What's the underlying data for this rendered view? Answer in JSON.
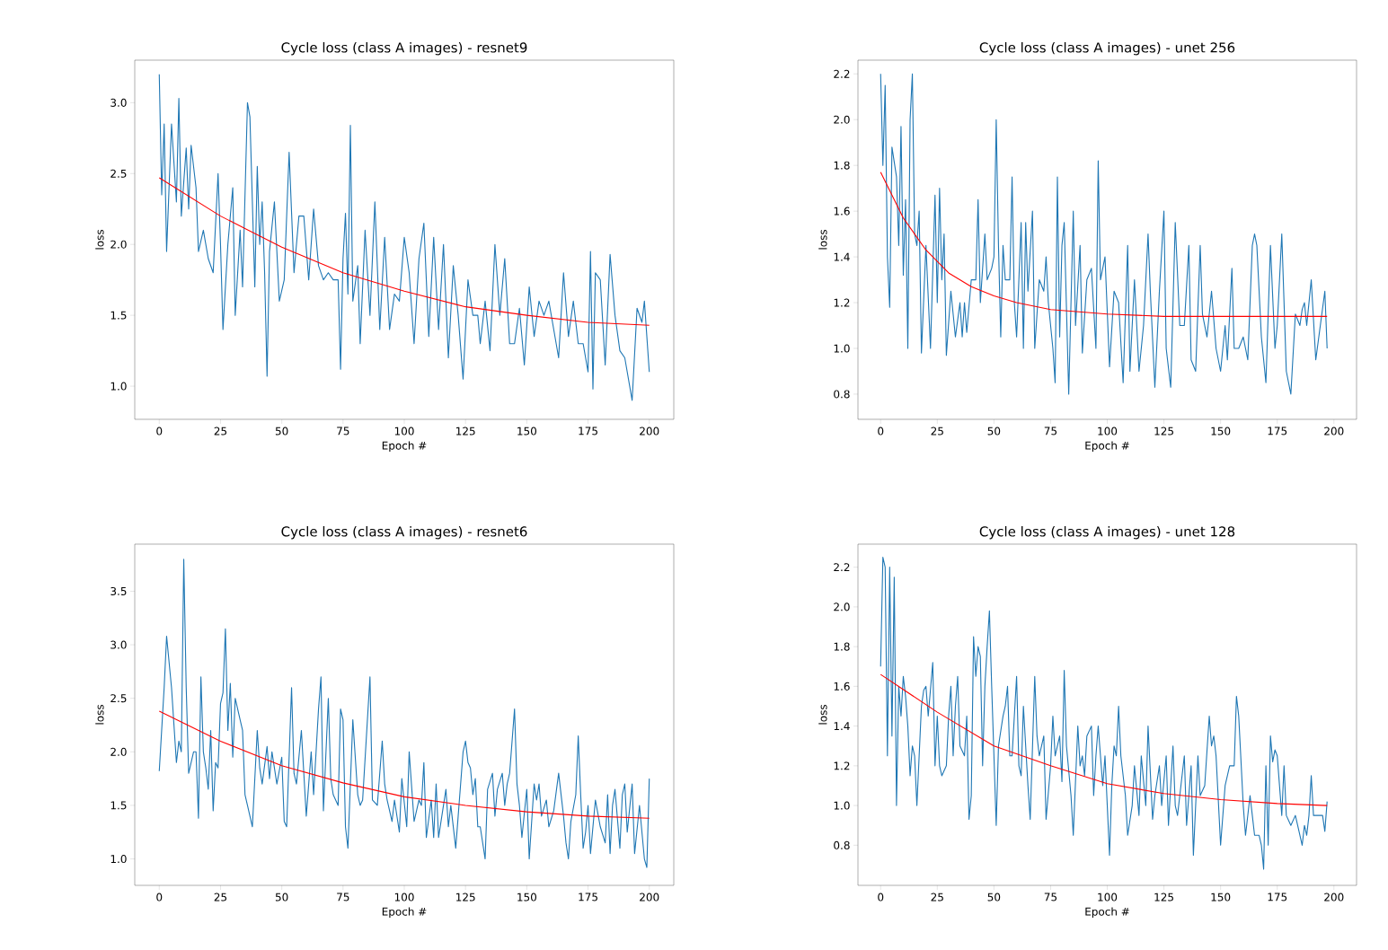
{
  "chart_data": [
    {
      "type": "line",
      "title": "Cycle loss (class A images) - resnet9",
      "xlabel": "Epoch #",
      "ylabel": "loss",
      "xlim": [
        -10,
        210
      ],
      "ylim": [
        0.766,
        3.3
      ],
      "xticks": [
        0,
        25,
        50,
        75,
        100,
        125,
        150,
        175,
        200
      ],
      "yticks": [
        {
          "value": 1.0,
          "label": "1.0"
        },
        1.5,
        {
          "value": 2.0,
          "label": "2.0"
        },
        2.5,
        {
          "value": 3.0,
          "label": "3.0"
        }
      ],
      "series": [
        {
          "color": "#1f77b4",
          "x": [
            0,
            1,
            2,
            3,
            5,
            7,
            8,
            9,
            11,
            12,
            13,
            15,
            16,
            18,
            20,
            22,
            24,
            25,
            26,
            28,
            30,
            31,
            33,
            34,
            36,
            37,
            39,
            40,
            41,
            42,
            43,
            44,
            45,
            47,
            49,
            51,
            53,
            55,
            57,
            59,
            61,
            63,
            65,
            67,
            69,
            71,
            73,
            74,
            75,
            76,
            77,
            78,
            79,
            81,
            82,
            84,
            86,
            88,
            90,
            92,
            94,
            96,
            98,
            100,
            102,
            104,
            106,
            108,
            110,
            112,
            114,
            116,
            118,
            120,
            122,
            124,
            126,
            128,
            130,
            131,
            133,
            135,
            137,
            139,
            141,
            143,
            145,
            147,
            149,
            151,
            153,
            155,
            157,
            159,
            161,
            163,
            165,
            167,
            169,
            171,
            173,
            175,
            176,
            177,
            178,
            180,
            182,
            184,
            186,
            188,
            190,
            193,
            195,
            197,
            198,
            200
          ],
          "values": [
            3.2,
            2.35,
            2.85,
            1.95,
            2.85,
            2.3,
            3.03,
            2.2,
            2.68,
            2.25,
            2.7,
            2.4,
            1.95,
            2.1,
            1.9,
            1.8,
            2.5,
            2.0,
            1.4,
            2.0,
            2.4,
            1.5,
            2.1,
            1.7,
            3.0,
            2.9,
            1.7,
            2.55,
            2.0,
            2.3,
            1.8,
            1.07,
            1.95,
            2.3,
            1.6,
            1.75,
            2.65,
            1.8,
            2.2,
            2.2,
            1.75,
            2.25,
            1.85,
            1.75,
            1.8,
            1.75,
            1.75,
            1.12,
            1.9,
            2.22,
            1.65,
            2.84,
            1.6,
            1.85,
            1.3,
            2.1,
            1.5,
            2.3,
            1.4,
            2.05,
            1.4,
            1.65,
            1.6,
            2.05,
            1.8,
            1.3,
            1.9,
            2.15,
            1.35,
            2.05,
            1.4,
            2.0,
            1.2,
            1.85,
            1.5,
            1.05,
            1.75,
            1.5,
            1.5,
            1.3,
            1.6,
            1.25,
            2.0,
            1.5,
            1.9,
            1.3,
            1.3,
            1.55,
            1.15,
            1.7,
            1.35,
            1.6,
            1.5,
            1.6,
            1.4,
            1.2,
            1.8,
            1.35,
            1.6,
            1.3,
            1.3,
            1.1,
            1.95,
            0.98,
            1.8,
            1.75,
            1.15,
            1.93,
            1.5,
            1.25,
            1.2,
            0.9,
            1.55,
            1.45,
            1.6,
            1.1
          ]
        },
        {
          "color": "#ff0000",
          "x": [
            0,
            25,
            50,
            75,
            100,
            125,
            150,
            175,
            200
          ],
          "values": [
            2.47,
            2.2,
            1.98,
            1.8,
            1.67,
            1.56,
            1.5,
            1.45,
            1.43
          ]
        }
      ]
    },
    {
      "type": "line",
      "title": "Cycle loss (class A images) - unet 256",
      "xlabel": "Epoch #",
      "ylabel": "loss",
      "xlim": [
        -10,
        210
      ],
      "ylim": [
        0.69,
        2.26
      ],
      "xticks": [
        0,
        25,
        50,
        75,
        100,
        125,
        150,
        175,
        200
      ],
      "yticks": [
        0.8,
        {
          "value": 1.0,
          "label": "1.0"
        },
        1.2,
        1.4,
        1.6,
        1.8,
        {
          "value": 2.0,
          "label": "2.0"
        },
        2.2
      ],
      "series": [
        {
          "color": "#1f77b4",
          "x": [
            0,
            1,
            2,
            3,
            4,
            5,
            7,
            8,
            9,
            10,
            11,
            12,
            13,
            14,
            15,
            16,
            17,
            18,
            20,
            22,
            24,
            25,
            26,
            27,
            28,
            29,
            31,
            33,
            35,
            36,
            37,
            38,
            40,
            42,
            43,
            44,
            46,
            47,
            49,
            50,
            51,
            52,
            53,
            54,
            55,
            57,
            58,
            59,
            60,
            62,
            63,
            64,
            65,
            67,
            68,
            70,
            72,
            73,
            74,
            76,
            77,
            78,
            79,
            80,
            81,
            83,
            85,
            86,
            88,
            89,
            91,
            93,
            95,
            96,
            97,
            99,
            101,
            103,
            105,
            107,
            109,
            110,
            112,
            114,
            116,
            118,
            119,
            121,
            123,
            125,
            126,
            128,
            130,
            132,
            134,
            136,
            137,
            139,
            141,
            142,
            144,
            146,
            148,
            150,
            152,
            153,
            155,
            156,
            158,
            160,
            162,
            164,
            165,
            166,
            168,
            170,
            172,
            174,
            175,
            177,
            179,
            181,
            183,
            185,
            186,
            187,
            188,
            190,
            192,
            194,
            196,
            197
          ],
          "values": [
            2.2,
            1.8,
            2.15,
            1.4,
            1.18,
            1.88,
            1.75,
            1.45,
            1.97,
            1.32,
            1.65,
            1.0,
            2.0,
            2.2,
            1.5,
            1.45,
            1.6,
            0.98,
            1.45,
            1.0,
            1.67,
            1.2,
            1.7,
            1.3,
            1.5,
            0.97,
            1.25,
            1.05,
            1.2,
            1.05,
            1.2,
            1.07,
            1.3,
            1.3,
            1.65,
            1.2,
            1.5,
            1.3,
            1.35,
            1.4,
            2.0,
            1.45,
            1.05,
            1.45,
            1.3,
            1.3,
            1.75,
            1.2,
            1.05,
            1.55,
            1.0,
            1.55,
            1.25,
            1.6,
            1.0,
            1.3,
            1.25,
            1.4,
            1.2,
            1.0,
            0.85,
            1.75,
            1.05,
            1.45,
            1.55,
            0.8,
            1.6,
            1.1,
            1.45,
            0.98,
            1.3,
            1.35,
            1.0,
            1.82,
            1.3,
            1.4,
            0.92,
            1.25,
            1.2,
            0.85,
            1.45,
            0.9,
            1.3,
            0.9,
            1.1,
            1.5,
            1.25,
            0.83,
            1.25,
            1.6,
            1.0,
            0.83,
            1.55,
            1.1,
            1.1,
            1.45,
            0.95,
            0.9,
            1.45,
            1.15,
            1.05,
            1.25,
            1.0,
            0.9,
            1.1,
            0.95,
            1.35,
            1.0,
            1.0,
            1.05,
            0.95,
            1.45,
            1.5,
            1.45,
            1.05,
            0.85,
            1.45,
            1.0,
            1.1,
            1.5,
            0.9,
            0.8,
            1.15,
            1.1,
            1.17,
            1.2,
            1.1,
            1.3,
            0.95,
            1.1,
            1.25,
            1.0
          ]
        },
        {
          "color": "#ff0000",
          "x": [
            0,
            10,
            20,
            30,
            40,
            50,
            60,
            75,
            100,
            125,
            150,
            197
          ],
          "values": [
            1.77,
            1.57,
            1.43,
            1.33,
            1.27,
            1.23,
            1.2,
            1.17,
            1.15,
            1.14,
            1.14,
            1.14
          ]
        }
      ]
    },
    {
      "type": "line",
      "title": "Cycle loss (class A images) - resnet6",
      "xlabel": "Epoch #",
      "ylabel": "loss",
      "xlim": [
        -10,
        210
      ],
      "ylim": [
        0.753,
        3.94
      ],
      "xticks": [
        0,
        25,
        50,
        75,
        100,
        125,
        150,
        175,
        200
      ],
      "yticks": [
        {
          "value": 1.0,
          "label": "1.0"
        },
        1.5,
        {
          "value": 2.0,
          "label": "2.0"
        },
        2.5,
        {
          "value": 3.0,
          "label": "3.0"
        },
        3.5
      ],
      "series": [
        {
          "color": "#1f77b4",
          "x": [
            0,
            2,
            3,
            5,
            7,
            8,
            9,
            10,
            11,
            12,
            14,
            15,
            16,
            17,
            18,
            19,
            20,
            21,
            22,
            23,
            24,
            25,
            26,
            27,
            28,
            29,
            30,
            31,
            33,
            34,
            35,
            36,
            38,
            40,
            41,
            42,
            44,
            45,
            46,
            48,
            50,
            51,
            52,
            54,
            55,
            56,
            58,
            60,
            62,
            63,
            65,
            66,
            67,
            69,
            70,
            71,
            73,
            74,
            75,
            76,
            77,
            79,
            81,
            82,
            83,
            86,
            87,
            89,
            91,
            92,
            93,
            95,
            96,
            98,
            99,
            101,
            102,
            104,
            106,
            107,
            108,
            109,
            111,
            112,
            113,
            114,
            116,
            117,
            118,
            119,
            121,
            122,
            124,
            125,
            126,
            127,
            128,
            129,
            130,
            131,
            133,
            134,
            136,
            137,
            138,
            140,
            141,
            142,
            143,
            145,
            146,
            147,
            148,
            150,
            151,
            153,
            154,
            155,
            156,
            158,
            159,
            161,
            163,
            165,
            166,
            167,
            168,
            170,
            171,
            172,
            173,
            174,
            175,
            176,
            178,
            180,
            182,
            183,
            184,
            185,
            186,
            188,
            189,
            190,
            191,
            193,
            194,
            196,
            198,
            199,
            200
          ],
          "values": [
            1.82,
            2.6,
            3.08,
            2.6,
            1.9,
            2.1,
            2.0,
            3.8,
            2.6,
            1.8,
            2.0,
            2.0,
            1.38,
            2.7,
            2.0,
            1.85,
            1.65,
            2.2,
            1.45,
            1.9,
            1.85,
            2.45,
            2.55,
            3.15,
            2.2,
            2.64,
            1.95,
            2.5,
            2.3,
            2.2,
            1.6,
            1.5,
            1.3,
            2.2,
            1.85,
            1.7,
            2.05,
            1.75,
            2.0,
            1.7,
            1.95,
            1.35,
            1.3,
            2.6,
            1.8,
            1.7,
            2.2,
            1.4,
            2.0,
            1.6,
            2.4,
            2.7,
            1.45,
            2.5,
            1.75,
            1.6,
            1.5,
            2.4,
            2.3,
            1.3,
            1.1,
            2.3,
            1.6,
            1.5,
            1.55,
            2.7,
            1.55,
            1.5,
            2.1,
            1.7,
            1.55,
            1.35,
            1.55,
            1.25,
            1.75,
            1.3,
            2.0,
            1.35,
            1.55,
            1.5,
            1.9,
            1.2,
            1.55,
            1.2,
            1.7,
            1.2,
            1.5,
            1.65,
            1.3,
            1.5,
            1.1,
            1.4,
            2.0,
            2.1,
            1.9,
            1.85,
            1.6,
            1.75,
            1.3,
            1.3,
            1.0,
            1.65,
            1.8,
            1.4,
            1.65,
            1.8,
            1.5,
            1.7,
            1.8,
            2.4,
            1.7,
            1.5,
            1.2,
            1.65,
            1.0,
            1.7,
            1.55,
            1.7,
            1.4,
            1.55,
            1.3,
            1.45,
            1.8,
            1.4,
            1.15,
            1.0,
            1.35,
            1.6,
            2.15,
            1.6,
            1.1,
            1.25,
            1.5,
            1.05,
            1.55,
            1.3,
            1.15,
            1.6,
            1.05,
            1.5,
            1.65,
            1.1,
            1.6,
            1.7,
            1.25,
            1.7,
            1.05,
            1.5,
            1.0,
            0.92,
            1.75
          ]
        },
        {
          "color": "#ff0000",
          "x": [
            0,
            25,
            50,
            75,
            100,
            125,
            150,
            175,
            200
          ],
          "values": [
            2.38,
            2.1,
            1.87,
            1.71,
            1.58,
            1.5,
            1.44,
            1.4,
            1.38
          ]
        }
      ]
    },
    {
      "type": "line",
      "title": "Cycle loss (class A images) - unet 128",
      "xlabel": "Epoch #",
      "ylabel": "loss",
      "xlim": [
        -10,
        210
      ],
      "ylim": [
        0.598,
        2.316
      ],
      "xticks": [
        0,
        25,
        50,
        75,
        100,
        125,
        150,
        175,
        200
      ],
      "yticks": [
        0.8,
        {
          "value": 1.0,
          "label": "1.0"
        },
        1.2,
        1.4,
        1.6,
        1.8,
        {
          "value": 2.0,
          "label": "2.0"
        },
        2.2
      ],
      "series": [
        {
          "color": "#1f77b4",
          "x": [
            0,
            1,
            2,
            3,
            4,
            5,
            6,
            7,
            8,
            9,
            10,
            11,
            12,
            13,
            14,
            15,
            16,
            17,
            18,
            19,
            20,
            21,
            23,
            24,
            25,
            26,
            27,
            29,
            30,
            31,
            32,
            33,
            34,
            35,
            37,
            38,
            39,
            40,
            41,
            42,
            43,
            44,
            45,
            46,
            47,
            48,
            49,
            51,
            52,
            54,
            55,
            56,
            57,
            58,
            60,
            61,
            62,
            63,
            65,
            66,
            68,
            69,
            70,
            72,
            73,
            75,
            76,
            77,
            79,
            80,
            81,
            82,
            84,
            85,
            87,
            88,
            89,
            90,
            91,
            93,
            94,
            95,
            96,
            98,
            99,
            101,
            102,
            103,
            104,
            105,
            106,
            108,
            109,
            111,
            112,
            114,
            115,
            117,
            118,
            120,
            121,
            123,
            124,
            126,
            127,
            129,
            130,
            131,
            132,
            134,
            135,
            137,
            138,
            140,
            141,
            143,
            145,
            146,
            147,
            148,
            150,
            152,
            154,
            156,
            157,
            158,
            160,
            161,
            163,
            164,
            165,
            167,
            168,
            169,
            170,
            171,
            172,
            173,
            174,
            175,
            177,
            178,
            179,
            181,
            183,
            184,
            186,
            187,
            188,
            189,
            190,
            191,
            193,
            195,
            196,
            197
          ],
          "values": [
            1.7,
            2.25,
            2.2,
            1.25,
            2.2,
            1.35,
            2.15,
            1.0,
            1.6,
            1.45,
            1.65,
            1.55,
            1.4,
            1.15,
            1.3,
            1.25,
            1.0,
            1.25,
            1.5,
            1.58,
            1.6,
            1.45,
            1.72,
            1.2,
            1.45,
            1.2,
            1.15,
            1.2,
            1.45,
            1.6,
            1.25,
            1.5,
            1.65,
            1.3,
            1.25,
            1.45,
            0.93,
            1.05,
            1.85,
            1.65,
            1.8,
            1.75,
            1.2,
            1.6,
            1.8,
            1.98,
            1.6,
            0.9,
            1.3,
            1.45,
            1.5,
            1.6,
            1.25,
            1.25,
            1.65,
            1.2,
            1.15,
            1.5,
            1.1,
            0.93,
            1.65,
            1.35,
            1.25,
            1.35,
            0.93,
            1.2,
            1.45,
            1.25,
            1.35,
            1.12,
            1.68,
            1.3,
            1.05,
            0.85,
            1.4,
            1.2,
            1.25,
            1.15,
            1.35,
            1.4,
            1.05,
            1.25,
            1.4,
            1.1,
            1.25,
            0.75,
            1.1,
            1.3,
            1.25,
            1.5,
            1.25,
            1.05,
            0.85,
            1.0,
            1.2,
            0.95,
            1.25,
            1.0,
            1.4,
            0.93,
            1.05,
            1.2,
            1.0,
            1.25,
            0.9,
            1.3,
            1.0,
            0.95,
            1.05,
            1.25,
            0.9,
            1.2,
            0.75,
            1.25,
            1.05,
            1.1,
            1.45,
            1.3,
            1.35,
            1.25,
            0.8,
            1.1,
            1.2,
            1.2,
            1.55,
            1.45,
            1.0,
            0.85,
            1.05,
            0.95,
            0.85,
            0.85,
            0.8,
            0.68,
            1.2,
            0.8,
            1.35,
            1.22,
            1.28,
            1.25,
            0.95,
            1.2,
            0.95,
            0.9,
            0.95,
            0.9,
            0.8,
            0.9,
            0.85,
            0.95,
            1.15,
            0.95,
            0.95,
            0.95,
            0.87,
            1.02
          ]
        },
        {
          "color": "#ff0000",
          "x": [
            0,
            25,
            50,
            75,
            100,
            125,
            150,
            175,
            197
          ],
          "values": [
            1.66,
            1.47,
            1.3,
            1.2,
            1.11,
            1.06,
            1.03,
            1.01,
            1.0
          ]
        }
      ]
    }
  ]
}
